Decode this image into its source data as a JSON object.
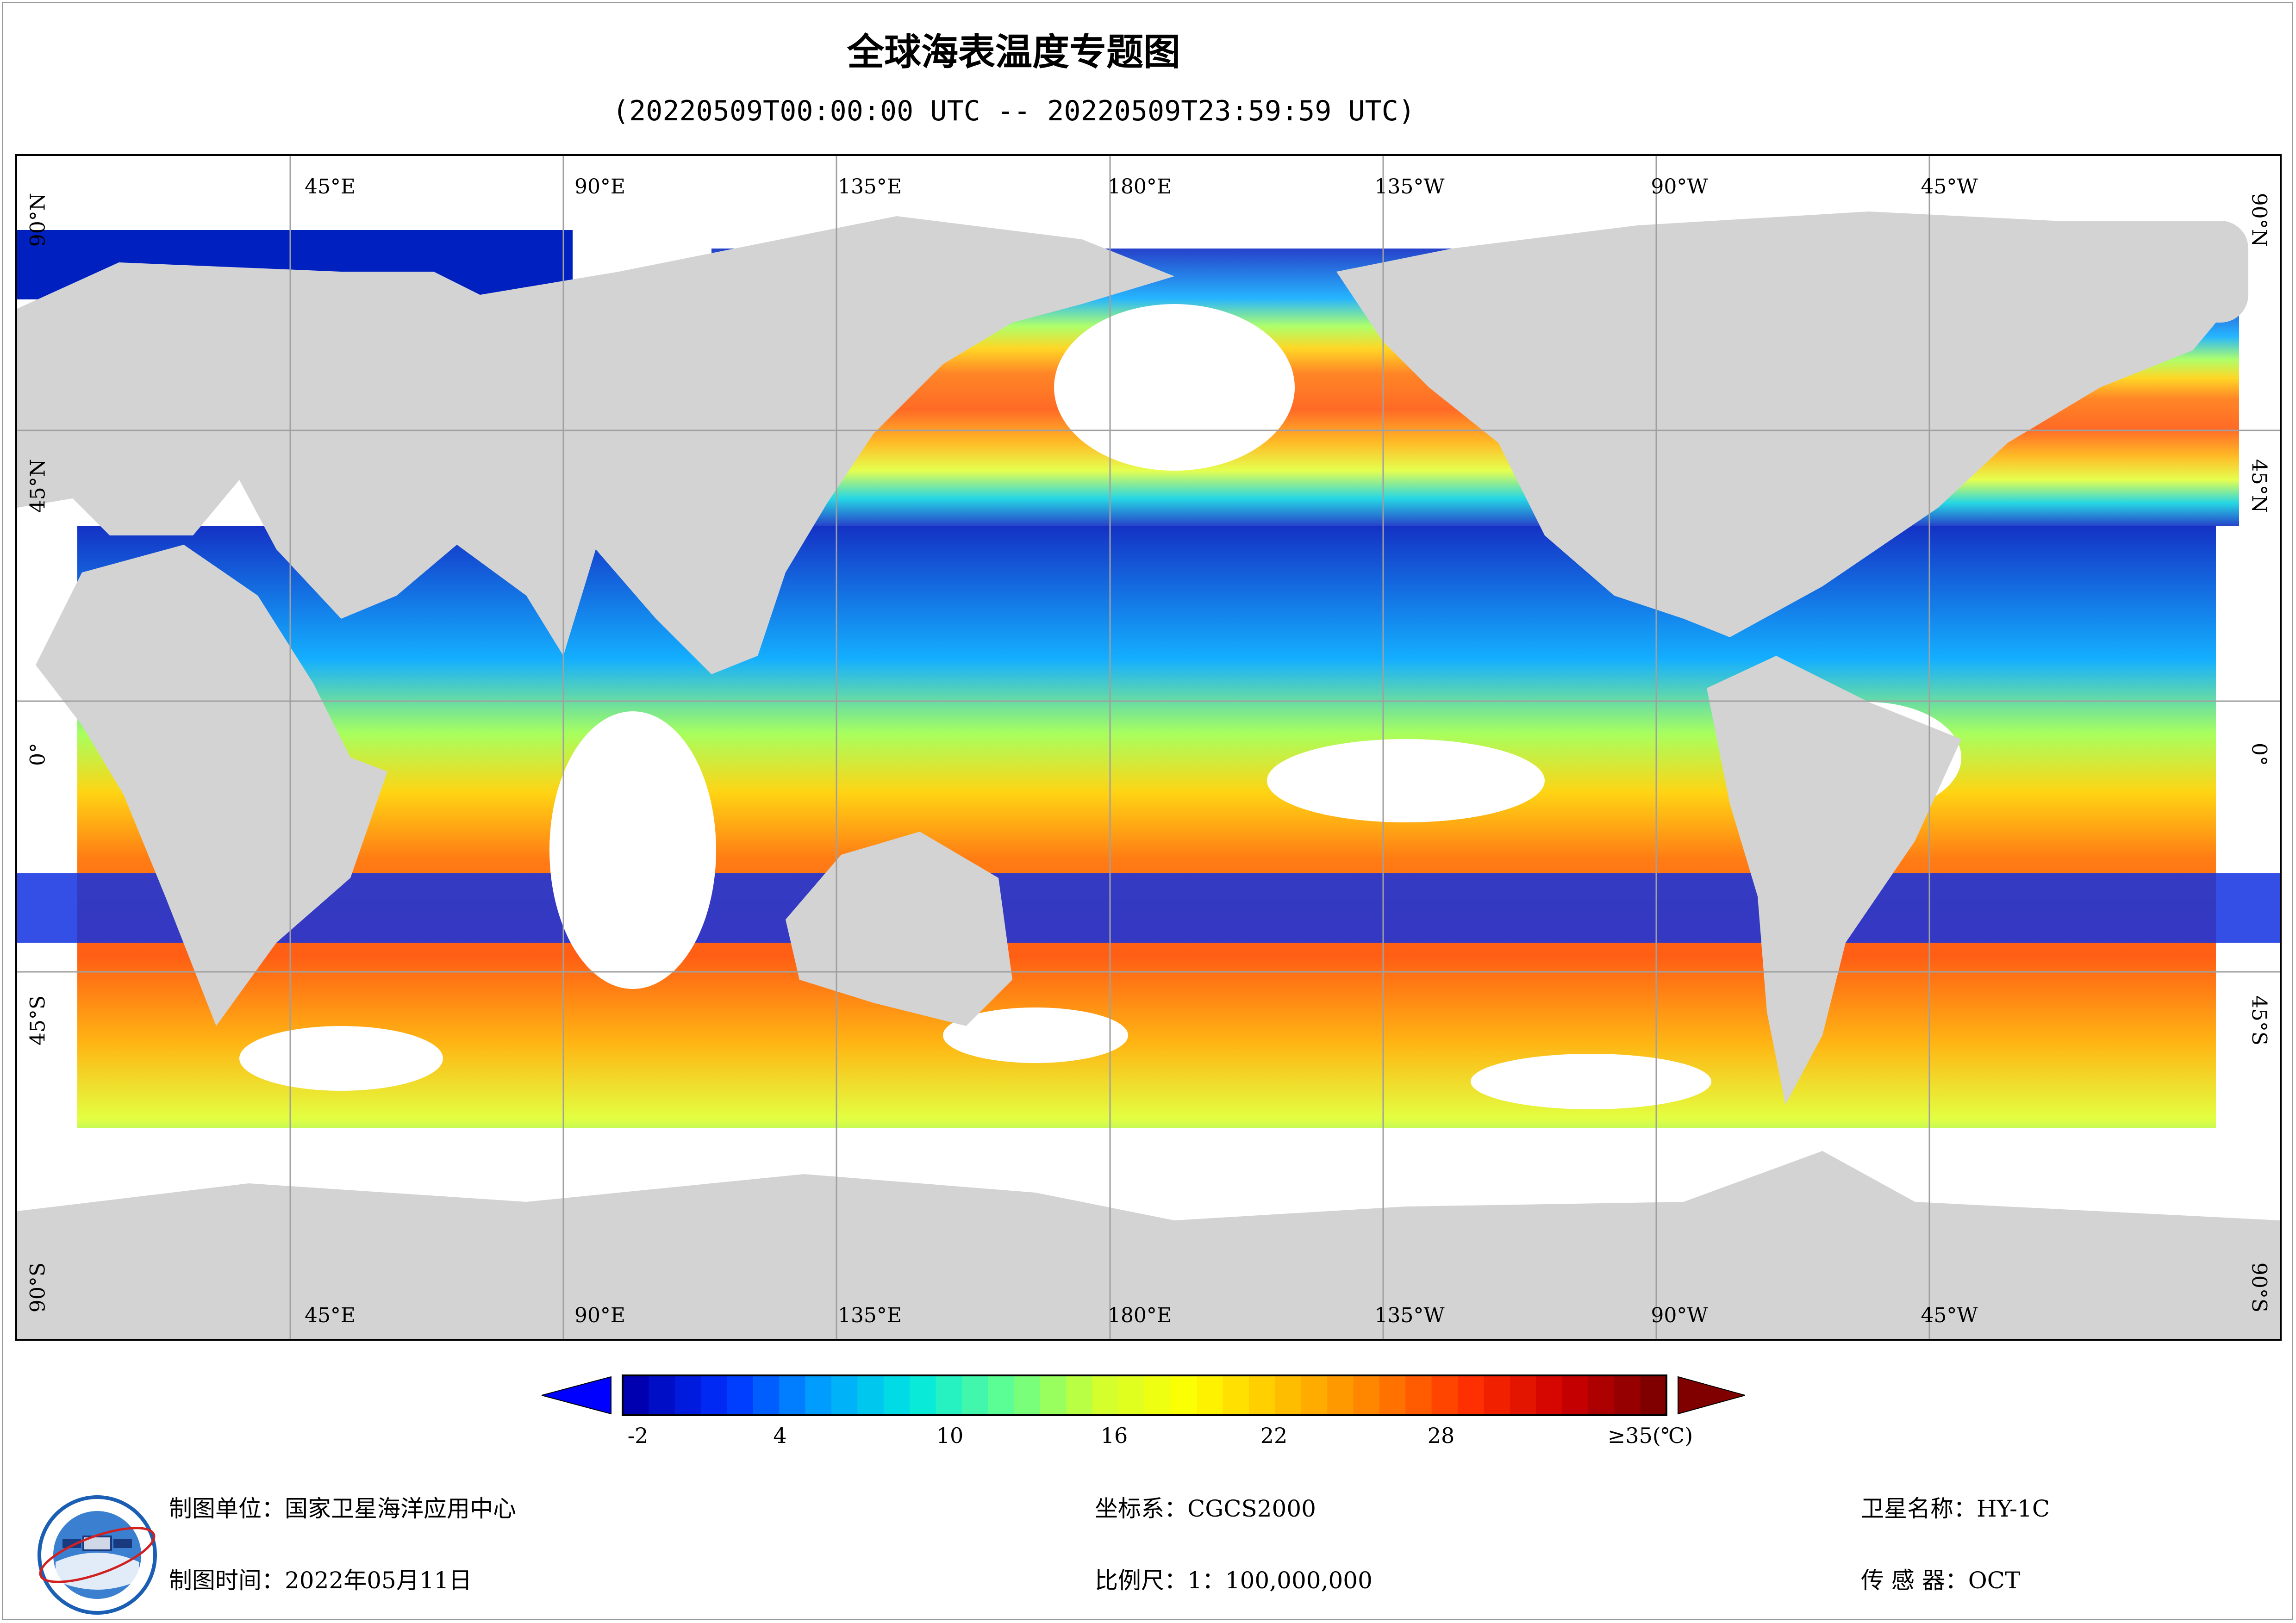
{
  "title": "全球海表温度专题图",
  "subtitle": "(20220509T00:00:00 UTC -- 20220509T23:59:59 UTC)",
  "map": {
    "lon_labels_top": [
      "45°E",
      "90°E",
      "135°E",
      "180°E",
      "135°W",
      "90°W",
      "45°W"
    ],
    "lon_labels_bottom": [
      "45°E",
      "90°E",
      "135°E",
      "180°E",
      "135°W",
      "90°W",
      "45°W"
    ],
    "lat_labels": [
      "90°N",
      "45°N",
      "0°",
      "45°S",
      "90°S"
    ],
    "colors": {
      "land": "#d3d3d3",
      "no_data": "#ffffff",
      "grid": "#a0a0a0"
    }
  },
  "colorbar": {
    "ticks": [
      "-2",
      "4",
      "10",
      "16",
      "22",
      "28",
      "≥35(℃)"
    ],
    "color_stops": [
      "#0000b0",
      "#0030ff",
      "#00a0ff",
      "#00e8e0",
      "#60ff90",
      "#d0ff30",
      "#ffff00",
      "#ffc000",
      "#ff8000",
      "#ff3000",
      "#d00000",
      "#800000"
    ],
    "under_color": "#0000ff",
    "over_color": "#800000"
  },
  "footer": {
    "org_label": "制图单位：国家卫星海洋应用中心",
    "date_label": "制图时间：2022年05月11日",
    "crs_label": "坐标系：CGCS2000",
    "scale_label": "比例尺：1：100,000,000",
    "satellite_label": "卫星名称：HY-1C",
    "sensor_label": "传 感 器：OCT"
  },
  "logo": {
    "icon": "nsoas-logo"
  }
}
